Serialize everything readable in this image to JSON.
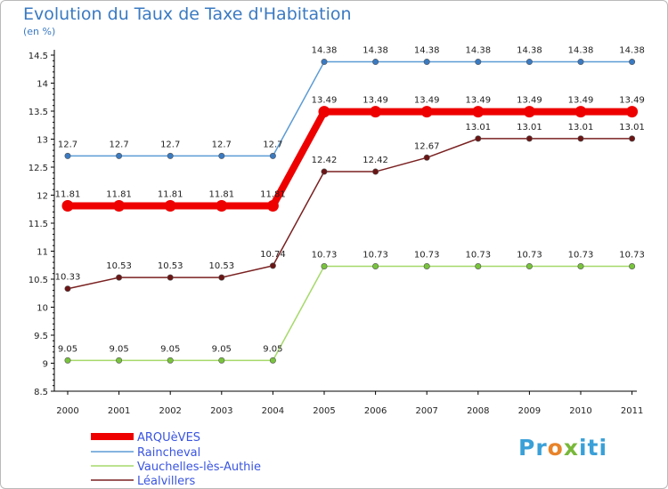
{
  "header": {
    "title": "Evolution du Taux de Taxe d'Habitation",
    "unit": "(en %)"
  },
  "brand": {
    "p": "Pr",
    "o": "o",
    "x": "x",
    "i": "iti"
  },
  "chart_data": {
    "type": "line",
    "title": "Evolution du Taux de Taxe d'Habitation",
    "ylabel": "(en %)",
    "x": [
      2000,
      2001,
      2002,
      2003,
      2004,
      2005,
      2006,
      2007,
      2008,
      2009,
      2010,
      2011
    ],
    "x_labels": [
      "2000",
      "2001",
      "2002",
      "2003",
      "2004",
      "2005",
      "2006",
      "2007",
      "2008",
      "2009",
      "2010",
      "2011"
    ],
    "ylim": [
      8.5,
      14.5
    ],
    "y_ticks": [
      8.5,
      9,
      9.5,
      10,
      10.5,
      11,
      11.5,
      12,
      12.5,
      13,
      13.5,
      14,
      14.5
    ],
    "y_tick_labels": [
      "8.5",
      "9",
      "9.5",
      "10",
      "10.5",
      "11",
      "11.5",
      "12",
      "12.5",
      "13",
      "13.5",
      "14",
      "14.5"
    ],
    "legend_position": "bottom-left",
    "series": [
      {
        "name": "Raincheval",
        "color": "#5b9bd5",
        "dot": "#3a7ac2",
        "values": [
          12.7,
          12.7,
          12.7,
          12.7,
          12.7,
          14.38,
          14.38,
          14.38,
          14.38,
          14.38,
          14.38,
          14.38
        ],
        "labels": [
          "12.7",
          "12.7",
          "12.7",
          "12.7",
          "12.7",
          "14.38",
          "14.38",
          "14.38",
          "14.38",
          "14.38",
          "14.38",
          "14.38"
        ]
      },
      {
        "name": "Lealvillers",
        "color": "#7a2020",
        "dot": "#6b1515",
        "values": [
          10.33,
          10.53,
          10.53,
          10.53,
          10.74,
          12.42,
          12.42,
          12.67,
          13.01,
          13.01,
          13.01,
          13.01
        ],
        "labels": [
          "10.33",
          "10.53",
          "10.53",
          "10.53",
          "10.74",
          "12.42",
          "12.42",
          "12.67",
          "13.01",
          "13.01",
          "13.01",
          "13.01"
        ]
      },
      {
        "name": "Vauchelles-lès-Authie",
        "color": "#a6d96a",
        "dot": "#78c43c",
        "values": [
          9.05,
          9.05,
          9.05,
          9.05,
          9.05,
          10.73,
          10.73,
          10.73,
          10.73,
          10.73,
          10.73,
          10.73
        ],
        "labels": [
          "9.05",
          "9.05",
          "9.05",
          "9.05",
          "9.05",
          "10.73",
          "10.73",
          "10.73",
          "10.73",
          "10.73",
          "10.73",
          "10.73"
        ]
      },
      {
        "name": "ARQUèVES",
        "color": "#ee0000",
        "dot": "#ee0000",
        "bold": true,
        "values": [
          11.81,
          11.81,
          11.81,
          11.81,
          11.81,
          13.49,
          13.49,
          13.49,
          13.49,
          13.49,
          13.49,
          13.49
        ],
        "labels": [
          "11.81",
          "11.81",
          "11.81",
          "11.81",
          "11.81",
          "13.49",
          "13.49",
          "13.49",
          "13.49",
          "13.49",
          "13.49",
          "13.49"
        ]
      }
    ],
    "legend_order": [
      "ARQUèVES",
      "Raincheval",
      "Vauchelles-lès-Authie",
      "Léalvillers"
    ],
    "legend_colors": [
      "#ee0000",
      "#5b9bd5",
      "#a6d96a",
      "#7a2020"
    ]
  }
}
